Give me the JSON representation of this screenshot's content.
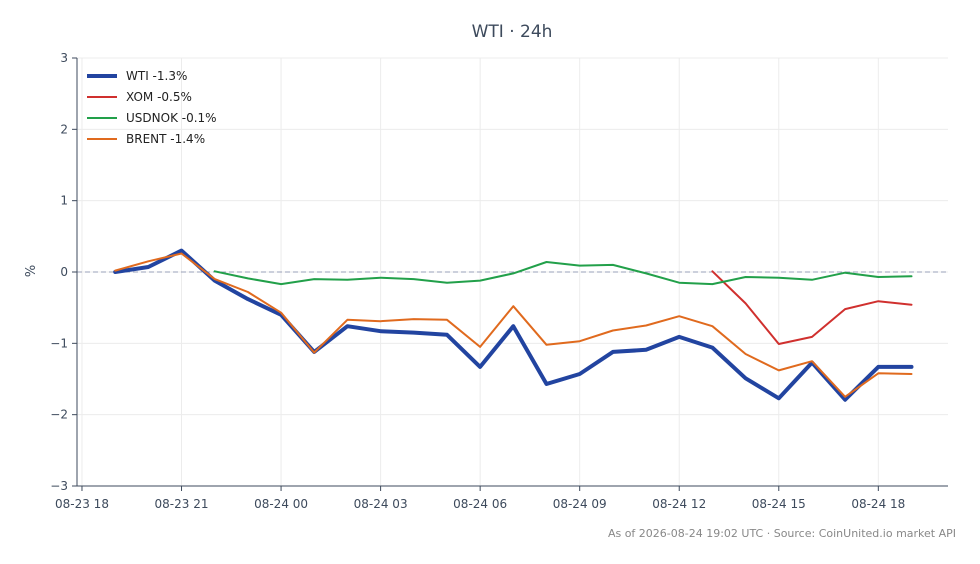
{
  "chart_data": {
    "type": "line",
    "title": "WTI · 24h",
    "ylabel": "%",
    "xlabel": "",
    "ylim": [
      -3,
      3
    ],
    "yticks": [
      -3,
      -2,
      -1,
      0,
      1,
      2,
      3
    ],
    "ytick_labels": [
      "−3",
      "−2",
      "−1",
      "0",
      "1",
      "2",
      "3"
    ],
    "xtick_labels": [
      "08-23 18",
      "08-23 21",
      "08-24 00",
      "08-24 03",
      "08-24 06",
      "08-24 09",
      "08-24 12",
      "08-24 15",
      "08-24 18"
    ],
    "x_unit": "hours since 08-23 18:00",
    "xlim": [
      -0.15,
      26.1
    ],
    "xticks": [
      0,
      3,
      6,
      9,
      12,
      15,
      18,
      21,
      24
    ],
    "grid": true,
    "zero_line": true,
    "legend_position": "top-left",
    "series": [
      {
        "name": "WTI -1.3%",
        "color": "#2244a0",
        "width": 4,
        "x": [
          1,
          2,
          3,
          4,
          5,
          6,
          7,
          8,
          9,
          10,
          11,
          12,
          13,
          14,
          15,
          16,
          17,
          18,
          19,
          20,
          21,
          22,
          23,
          24,
          25
        ],
        "y": [
          0.0,
          0.07,
          0.3,
          -0.12,
          -0.38,
          -0.6,
          -1.12,
          -0.76,
          -0.83,
          -0.85,
          -0.88,
          -1.33,
          -0.76,
          -1.57,
          -1.43,
          -1.12,
          -1.09,
          -0.91,
          -1.06,
          -1.49,
          -1.77,
          -1.27,
          -1.79,
          -1.33,
          -1.33
        ]
      },
      {
        "name": "XOM -0.5%",
        "color": "#d0302e",
        "width": 2,
        "x": [
          19,
          20,
          21,
          22,
          23,
          24,
          25
        ],
        "y": [
          0.01,
          -0.44,
          -1.01,
          -0.91,
          -0.52,
          -0.41,
          -0.46
        ]
      },
      {
        "name": "USDNOK -0.1%",
        "color": "#22a04a",
        "width": 2,
        "x": [
          4,
          5,
          6,
          7,
          8,
          9,
          10,
          11,
          12,
          13,
          14,
          15,
          16,
          17,
          18,
          19,
          20,
          21,
          22,
          23,
          24,
          25
        ],
        "y": [
          0.01,
          -0.09,
          -0.17,
          -0.1,
          -0.11,
          -0.08,
          -0.1,
          -0.15,
          -0.12,
          -0.02,
          0.14,
          0.09,
          0.1,
          -0.02,
          -0.15,
          -0.17,
          -0.07,
          -0.08,
          -0.11,
          -0.01,
          -0.07,
          -0.06
        ]
      },
      {
        "name": "BRENT -1.4%",
        "color": "#e06a1e",
        "width": 2,
        "x": [
          1,
          2,
          3,
          4,
          5,
          6,
          7,
          8,
          9,
          10,
          11,
          12,
          13,
          14,
          15,
          16,
          17,
          18,
          19,
          20,
          21,
          22,
          23,
          24,
          25
        ],
        "y": [
          0.02,
          0.15,
          0.26,
          -0.1,
          -0.28,
          -0.57,
          -1.13,
          -0.67,
          -0.69,
          -0.66,
          -0.67,
          -1.05,
          -0.48,
          -1.02,
          -0.97,
          -0.82,
          -0.75,
          -0.62,
          -0.76,
          -1.15,
          -1.38,
          -1.25,
          -1.75,
          -1.42,
          -1.43
        ]
      }
    ]
  },
  "footer": {
    "text": "As of 2026-08-24 19:02 UTC · Source: CoinUnited.io market API"
  }
}
